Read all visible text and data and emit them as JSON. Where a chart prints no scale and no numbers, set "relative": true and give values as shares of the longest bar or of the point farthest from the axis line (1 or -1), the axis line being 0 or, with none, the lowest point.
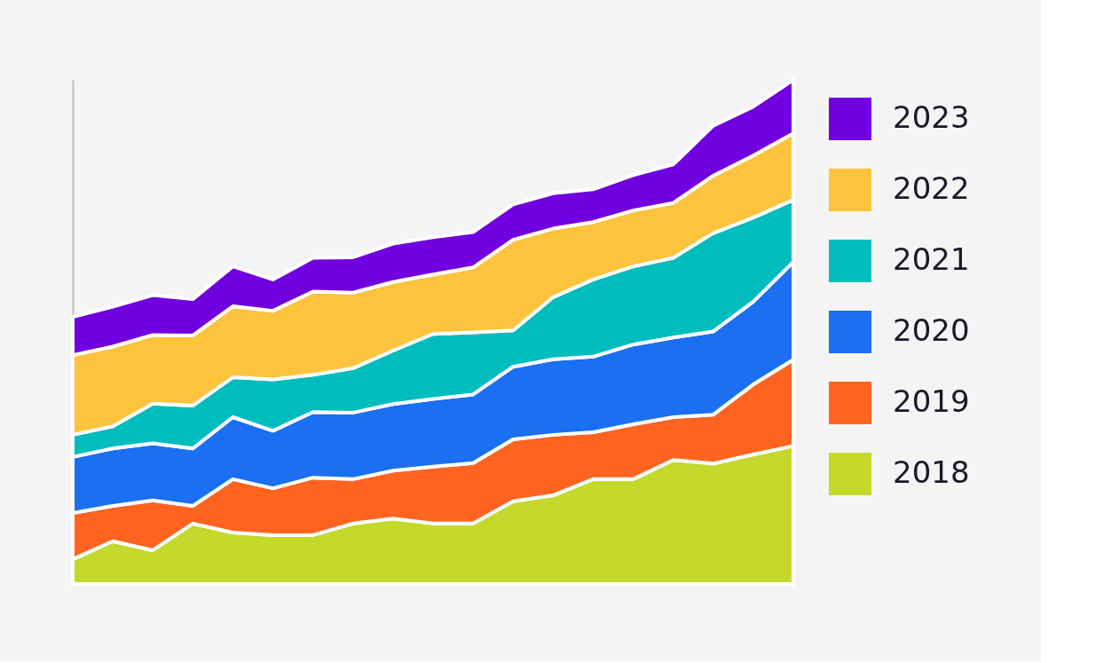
{
  "chart_data": {
    "type": "area",
    "stacked": true,
    "relative": true,
    "legend": "right",
    "categories": [
      null,
      null,
      null,
      null,
      null,
      null,
      null,
      null,
      null,
      null,
      null,
      null,
      null,
      null,
      null,
      null,
      null,
      null,
      null
    ],
    "series": [
      {
        "name": "2018",
        "color": "#c5d92d",
        "values": [
          0.049,
          0.085,
          0.067,
          0.12,
          0.102,
          0.097,
          0.097,
          0.12,
          0.13,
          0.12,
          0.12,
          0.164,
          0.176,
          0.208,
          0.208,
          0.246,
          0.239,
          0.257,
          0.274
        ]
      },
      {
        "name": "2019",
        "color": "#ff6320",
        "values": [
          0.092,
          0.07,
          0.099,
          0.035,
          0.106,
          0.093,
          0.114,
          0.088,
          0.095,
          0.113,
          0.12,
          0.123,
          0.12,
          0.093,
          0.109,
          0.085,
          0.097,
          0.139,
          0.171
        ]
      },
      {
        "name": "2020",
        "color": "#1a6ff3",
        "values": [
          0.111,
          0.114,
          0.113,
          0.114,
          0.123,
          0.114,
          0.13,
          0.132,
          0.132,
          0.134,
          0.136,
          0.144,
          0.15,
          0.15,
          0.158,
          0.158,
          0.165,
          0.164,
          0.194
        ]
      },
      {
        "name": "2021",
        "color": "#00bdbd",
        "values": [
          0.044,
          0.044,
          0.079,
          0.085,
          0.079,
          0.102,
          0.074,
          0.088,
          0.106,
          0.129,
          0.123,
          0.072,
          0.123,
          0.153,
          0.155,
          0.158,
          0.195,
          0.167,
          0.123
        ]
      },
      {
        "name": "2022",
        "color": "#fdc33c",
        "values": [
          0.158,
          0.158,
          0.136,
          0.139,
          0.141,
          0.136,
          0.165,
          0.15,
          0.136,
          0.118,
          0.129,
          0.18,
          0.136,
          0.114,
          0.111,
          0.109,
          0.114,
          0.123,
          0.132
        ]
      },
      {
        "name": "2023",
        "color": "#7000e0",
        "values": [
          0.076,
          0.079,
          0.079,
          0.072,
          0.079,
          0.062,
          0.067,
          0.07,
          0.076,
          0.074,
          0.07,
          0.07,
          0.07,
          0.065,
          0.07,
          0.076,
          0.099,
          0.097,
          0.106
        ]
      }
    ]
  }
}
